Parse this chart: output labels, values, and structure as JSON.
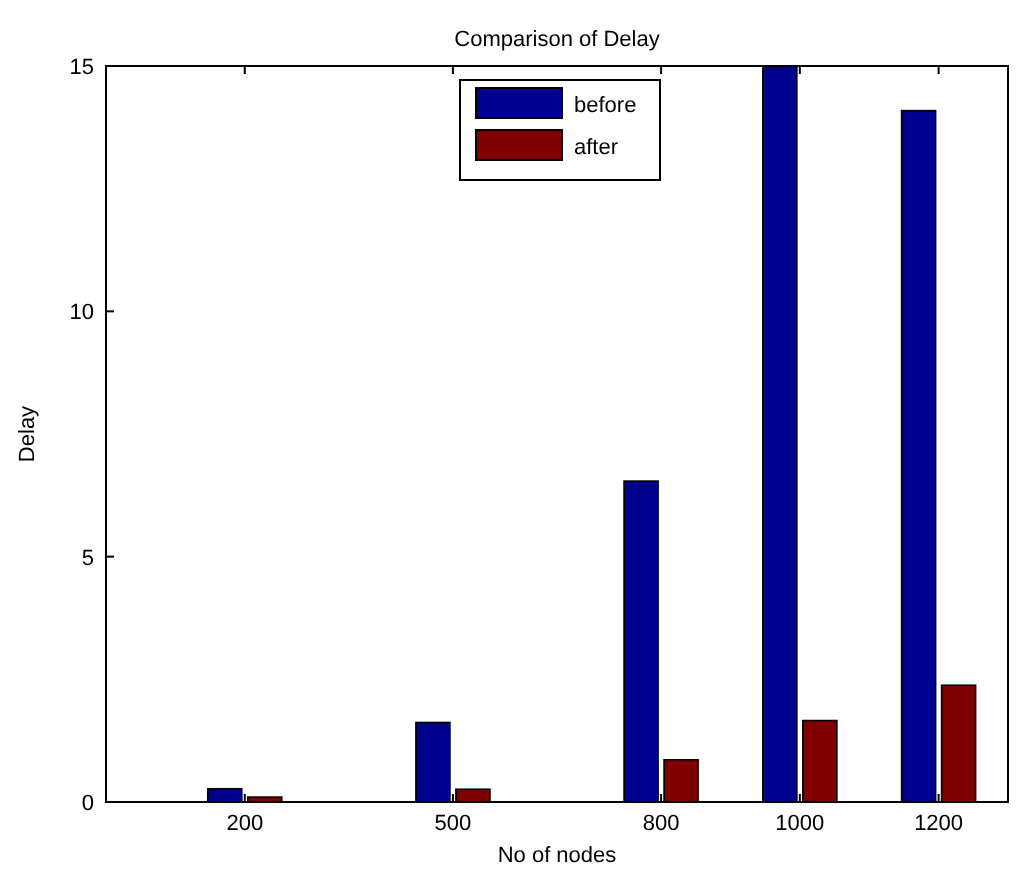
{
  "chart_data": {
    "type": "bar",
    "title": "Comparison of Delay",
    "xlabel": "No of nodes",
    "ylabel": "Delay",
    "x": [
      200,
      500,
      800,
      1000,
      1200
    ],
    "series": [
      {
        "name": "before",
        "color": "#00008f",
        "values": [
          0.27,
          1.62,
          6.54,
          15,
          14.09
        ]
      },
      {
        "name": "after",
        "color": "#800000",
        "values": [
          0.1,
          0.26,
          0.86,
          1.66,
          2.38
        ]
      }
    ],
    "xlim": [
      0,
      1300
    ],
    "xticks": [
      200,
      500,
      800,
      1000,
      1200
    ],
    "ylim": [
      0,
      15
    ],
    "yticks": [
      0,
      5,
      10,
      15
    ],
    "legend": "top"
  }
}
